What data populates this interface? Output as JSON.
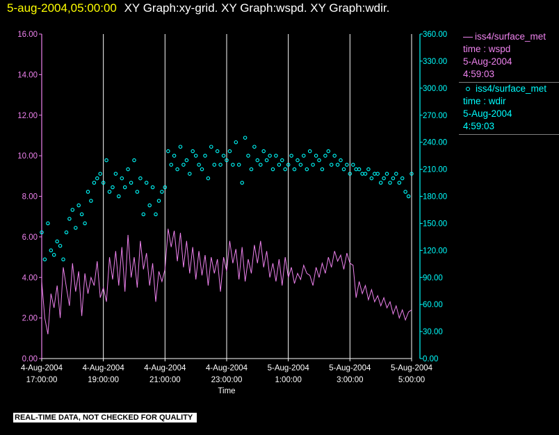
{
  "header": {
    "date": "5-aug-2004,05:00:00",
    "title": "XY Graph:xy-grid.  XY Graph:wspd.  XY Graph:wdir."
  },
  "legend": {
    "wspd": {
      "line1": "iss4/surface_met",
      "line2": "time : wspd",
      "line3": "5-Aug-2004",
      "line4": "4:59:03"
    },
    "wdir": {
      "line1": "iss4/surface_met",
      "line2": "time : wdir",
      "line3": "5-Aug-2004",
      "line4": "4:59:03"
    }
  },
  "notice": "REAL-TIME DATA, NOT CHECKED FOR QUALITY",
  "colors": {
    "wspd": "#ee82ee",
    "wdir": "#00ffff",
    "grid": "#ffffff",
    "header_date": "#ffff00"
  },
  "chart_data": {
    "type": "line",
    "xlabel": "Time",
    "xlim": [
      "4-Aug-2004 17:00:00",
      "5-Aug-2004 05:00:00"
    ],
    "x_ticks": [
      {
        "date": "4-Aug-2004",
        "time": "17:00:00",
        "hour": 0
      },
      {
        "date": "4-Aug-2004",
        "time": "19:00:00",
        "hour": 2
      },
      {
        "date": "4-Aug-2004",
        "time": "21:00:00",
        "hour": 4
      },
      {
        "date": "4-Aug-2004",
        "time": "23:00:00",
        "hour": 6
      },
      {
        "date": "5-Aug-2004",
        "time": "1:00:00",
        "hour": 8
      },
      {
        "date": "5-Aug-2004",
        "time": "3:00:00",
        "hour": 10
      },
      {
        "date": "5-Aug-2004",
        "time": "5:00:00",
        "hour": 12
      }
    ],
    "y_left": {
      "ylim": [
        0,
        16
      ],
      "ticks": [
        "0.00",
        "2.00",
        "4.00",
        "6.00",
        "8.00",
        "10.00",
        "12.00",
        "14.00",
        "16.00"
      ]
    },
    "y_right": {
      "ylim": [
        0,
        360
      ],
      "ticks": [
        "0.00",
        "30.00",
        "60.00",
        "90.00",
        "120.00",
        "150.00",
        "180.00",
        "210.00",
        "240.00",
        "270.00",
        "300.00",
        "330.00",
        "360.00"
      ]
    },
    "grid": "vertical",
    "series": [
      {
        "name": "iss4/surface_met time : wspd",
        "axis": "left",
        "style": "line",
        "x": [
          0,
          0.1,
          0.2,
          0.3,
          0.4,
          0.5,
          0.6,
          0.7,
          0.8,
          0.9,
          1.0,
          1.1,
          1.2,
          1.3,
          1.4,
          1.5,
          1.6,
          1.7,
          1.8,
          1.9,
          2.0,
          2.1,
          2.2,
          2.3,
          2.4,
          2.5,
          2.6,
          2.7,
          2.8,
          2.9,
          3.0,
          3.1,
          3.2,
          3.3,
          3.4,
          3.5,
          3.6,
          3.7,
          3.8,
          3.9,
          4.0,
          4.1,
          4.2,
          4.3,
          4.4,
          4.5,
          4.6,
          4.7,
          4.8,
          4.9,
          5.0,
          5.1,
          5.2,
          5.3,
          5.4,
          5.5,
          5.6,
          5.7,
          5.8,
          5.9,
          6.0,
          6.1,
          6.2,
          6.3,
          6.4,
          6.5,
          6.6,
          6.7,
          6.8,
          6.9,
          7.0,
          7.1,
          7.2,
          7.3,
          7.4,
          7.5,
          7.6,
          7.7,
          7.8,
          7.9,
          8.0,
          8.1,
          8.2,
          8.3,
          8.4,
          8.5,
          8.6,
          8.7,
          8.8,
          8.9,
          9.0,
          9.1,
          9.2,
          9.3,
          9.4,
          9.5,
          9.6,
          9.7,
          9.8,
          9.9,
          10.0,
          10.1,
          10.2,
          10.3,
          10.4,
          10.5,
          10.6,
          10.7,
          10.8,
          10.9,
          11.0,
          11.1,
          11.2,
          11.3,
          11.4,
          11.5,
          11.6,
          11.7,
          11.8,
          11.9,
          12.0
        ],
        "y": [
          3.8,
          2.0,
          1.2,
          3.2,
          2.5,
          3.6,
          2.0,
          4.5,
          3.5,
          2.6,
          4.7,
          3.3,
          4.3,
          2.1,
          4.2,
          3.2,
          4.0,
          3.6,
          4.8,
          3.0,
          3.5,
          2.8,
          5.0,
          3.9,
          5.3,
          3.6,
          5.5,
          3.3,
          6.1,
          4.0,
          5.0,
          3.5,
          5.8,
          4.4,
          5.2,
          3.6,
          4.7,
          2.8,
          4.3,
          3.8,
          4.4,
          6.4,
          5.5,
          6.3,
          4.8,
          6.2,
          4.5,
          5.8,
          4.2,
          5.5,
          3.9,
          5.3,
          4.1,
          5.1,
          3.6,
          5.0,
          4.2,
          4.9,
          3.3,
          5.0,
          4.3,
          5.8,
          4.7,
          5.4,
          3.9,
          5.5,
          3.8,
          4.9,
          4.2,
          5.6,
          4.7,
          5.8,
          4.5,
          5.3,
          4.0,
          4.7,
          3.8,
          4.9,
          3.6,
          5.0,
          4.0,
          4.5,
          3.7,
          4.2,
          3.9,
          4.6,
          4.2,
          4.1,
          3.6,
          4.5,
          4.0,
          4.7,
          4.2,
          5.0,
          4.5,
          5.3,
          4.8,
          5.1,
          4.4,
          5.2,
          4.7,
          4.6,
          3.0,
          3.8,
          3.2,
          3.6,
          2.9,
          3.4,
          2.8,
          3.1,
          2.6,
          3.0,
          2.5,
          2.8,
          2.2,
          2.6,
          2.0,
          2.4,
          1.9,
          2.3,
          2.4
        ]
      },
      {
        "name": "iss4/surface_met time : wdir",
        "axis": "right",
        "style": "markers",
        "x": [
          0,
          0.1,
          0.2,
          0.3,
          0.4,
          0.5,
          0.6,
          0.7,
          0.8,
          0.9,
          1.0,
          1.1,
          1.2,
          1.3,
          1.4,
          1.5,
          1.6,
          1.7,
          1.8,
          1.9,
          2.0,
          2.1,
          2.2,
          2.3,
          2.4,
          2.5,
          2.6,
          2.7,
          2.8,
          2.9,
          3.0,
          3.1,
          3.2,
          3.3,
          3.4,
          3.5,
          3.6,
          3.7,
          3.8,
          3.9,
          4.0,
          4.1,
          4.2,
          4.3,
          4.4,
          4.5,
          4.6,
          4.7,
          4.8,
          4.9,
          5.0,
          5.1,
          5.2,
          5.3,
          5.4,
          5.5,
          5.6,
          5.7,
          5.8,
          5.9,
          6.0,
          6.1,
          6.2,
          6.3,
          6.4,
          6.5,
          6.6,
          6.7,
          6.8,
          6.9,
          7.0,
          7.1,
          7.2,
          7.3,
          7.4,
          7.5,
          7.6,
          7.7,
          7.8,
          7.9,
          8.0,
          8.1,
          8.2,
          8.3,
          8.4,
          8.5,
          8.6,
          8.7,
          8.8,
          8.9,
          9.0,
          9.1,
          9.2,
          9.3,
          9.4,
          9.5,
          9.6,
          9.7,
          9.8,
          9.9,
          10.0,
          10.1,
          10.2,
          10.3,
          10.4,
          10.5,
          10.6,
          10.7,
          10.8,
          10.9,
          11.0,
          11.1,
          11.2,
          11.3,
          11.4,
          11.5,
          11.6,
          11.7,
          11.8,
          11.9,
          12.0
        ],
        "y": [
          140,
          110,
          150,
          120,
          115,
          130,
          125,
          110,
          140,
          155,
          165,
          145,
          170,
          160,
          150,
          185,
          175,
          195,
          200,
          205,
          195,
          220,
          185,
          190,
          205,
          180,
          200,
          190,
          210,
          195,
          220,
          185,
          200,
          160,
          195,
          170,
          190,
          160,
          175,
          185,
          190,
          230,
          215,
          225,
          210,
          235,
          215,
          220,
          205,
          230,
          225,
          215,
          210,
          225,
          200,
          235,
          215,
          230,
          215,
          225,
          220,
          230,
          215,
          240,
          215,
          195,
          245,
          225,
          210,
          235,
          220,
          215,
          230,
          220,
          225,
          210,
          225,
          215,
          220,
          210,
          215,
          225,
          210,
          220,
          215,
          225,
          210,
          230,
          215,
          225,
          220,
          210,
          225,
          230,
          215,
          225,
          215,
          220,
          210,
          215,
          205,
          215,
          210,
          210,
          205,
          205,
          210,
          200,
          205,
          205,
          195,
          200,
          205,
          195,
          200,
          205,
          195,
          200,
          185,
          180,
          205
        ]
      }
    ]
  }
}
